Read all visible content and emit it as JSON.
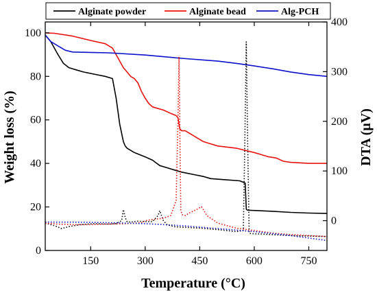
{
  "chart_data": {
    "type": "line",
    "xlabel": "Temperature (°C)",
    "ylabel_left": "Weight loss (%)",
    "ylabel_right": "DTA (μV)",
    "xlim": [
      25,
      800
    ],
    "ylim_left": [
      0,
      105
    ],
    "ylim_right": [
      -60,
      400
    ],
    "x_ticks": [
      150,
      300,
      450,
      600,
      750
    ],
    "y_left_ticks": [
      0,
      20,
      40,
      60,
      80,
      100
    ],
    "y_right_ticks": [
      0,
      100,
      200,
      300,
      400
    ],
    "legend_placement": "top",
    "legend": [
      {
        "name": "Alginate powder",
        "color": "#000000"
      },
      {
        "name": "Alginate bead",
        "color": "#e8100f"
      },
      {
        "name": "Alg-PCH",
        "color": "#0a10cc"
      }
    ],
    "series": [
      {
        "name": "Alginate powder",
        "axis": "left",
        "style": "solid",
        "color": "#000000",
        "x": [
          25,
          40,
          60,
          75,
          90,
          110,
          130,
          160,
          190,
          210,
          220,
          230,
          240,
          245,
          250,
          270,
          300,
          320,
          340,
          360,
          380,
          400,
          430,
          460,
          480,
          520,
          560,
          575,
          578,
          581,
          650,
          700,
          750,
          800
        ],
        "y": [
          99,
          96,
          90,
          86,
          84,
          83,
          82,
          81,
          80,
          79,
          70,
          58,
          50,
          48,
          47,
          45,
          43,
          41.5,
          39,
          38,
          37,
          36,
          35,
          34,
          33,
          32.5,
          32,
          31,
          19,
          18.5,
          18,
          17.5,
          17.2,
          17
        ]
      },
      {
        "name": "Alginate bead",
        "axis": "left",
        "style": "solid",
        "color": "#e8100f",
        "x": [
          25,
          50,
          100,
          150,
          190,
          210,
          220,
          230,
          240,
          250,
          260,
          270,
          280,
          290,
          300,
          310,
          320,
          330,
          350,
          370,
          385,
          390,
          395,
          400,
          410,
          420,
          440,
          460,
          480,
          500,
          550,
          600,
          640,
          660,
          680,
          700,
          750,
          800
        ],
        "y": [
          100,
          99.8,
          98.5,
          96.5,
          95,
          93,
          90,
          87,
          84,
          82,
          80,
          79,
          77,
          73,
          70,
          67.5,
          66,
          65.5,
          64.5,
          63,
          62,
          61,
          56,
          55,
          55,
          54,
          52,
          50,
          49,
          48,
          47,
          45,
          43,
          42.5,
          41,
          40.5,
          40,
          40
        ]
      },
      {
        "name": "Alg-PCH",
        "axis": "left",
        "style": "solid",
        "color": "#0a10cc",
        "x": [
          25,
          40,
          60,
          80,
          100,
          150,
          200,
          300,
          400,
          500,
          550,
          600,
          650,
          700,
          750,
          800
        ],
        "y": [
          99,
          96,
          94,
          92,
          91.2,
          91,
          90.8,
          89.8,
          88.3,
          87,
          86,
          84.8,
          83.5,
          82,
          80.8,
          80
        ]
      },
      {
        "name": "Alginate powder DTA",
        "axis": "right",
        "style": "dotted",
        "color": "#000000",
        "x": [
          25,
          50,
          70,
          90,
          120,
          160,
          200,
          220,
          235,
          240,
          245,
          250,
          260,
          280,
          300,
          320,
          335,
          340,
          345,
          350,
          360,
          380,
          400,
          450,
          500,
          550,
          570,
          574,
          578,
          582,
          586,
          590,
          620,
          700,
          800
        ],
        "y": [
          -5,
          -10,
          -16,
          -12,
          -8,
          -6,
          -7,
          -6,
          0,
          22,
          6,
          -2,
          -3,
          -1,
          -2,
          -2,
          10,
          20,
          10,
          0,
          -8,
          -12,
          -13,
          -15,
          -18,
          -22,
          -20,
          150,
          360,
          150,
          -25,
          -26,
          -27,
          -30,
          -32
        ]
      },
      {
        "name": "Alginate bead DTA",
        "axis": "right",
        "style": "dotted",
        "color": "#e8100f",
        "x": [
          25,
          60,
          100,
          150,
          200,
          250,
          290,
          300,
          320,
          350,
          370,
          385,
          390,
          393,
          396,
          398,
          402,
          410,
          420,
          440,
          455,
          470,
          500,
          550,
          600,
          650,
          700,
          750,
          800
        ],
        "y": [
          -5,
          -7,
          -8,
          -8,
          -7,
          -6,
          -4,
          0,
          2,
          5,
          10,
          40,
          200,
          330,
          140,
          20,
          12,
          10,
          15,
          22,
          28,
          10,
          -5,
          -15,
          -20,
          -25,
          -28,
          -30,
          -32
        ]
      },
      {
        "name": "Alg-PCH DTA",
        "axis": "right",
        "style": "dotted",
        "color": "#0a10cc",
        "x": [
          25,
          100,
          200,
          300,
          400,
          500,
          600,
          700,
          800
        ],
        "y": [
          -3,
          -3,
          -4,
          -6,
          -10,
          -16,
          -22,
          -30,
          -40
        ]
      }
    ]
  }
}
